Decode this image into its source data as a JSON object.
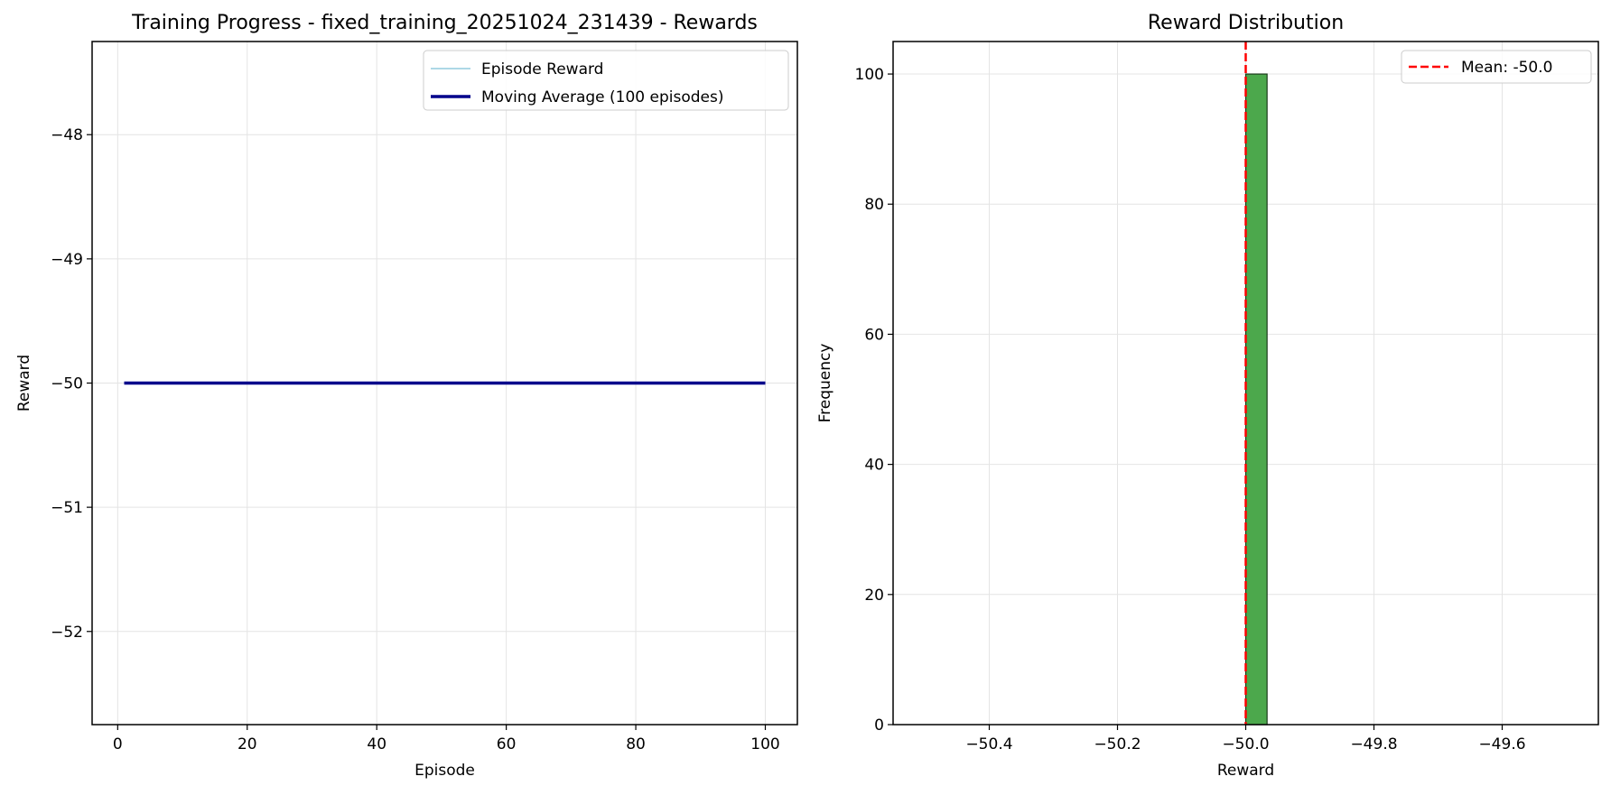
{
  "chart_data": [
    {
      "type": "line",
      "title": "Training Progress - fixed_training_20251024_231439 - Rewards",
      "xlabel": "Episode",
      "ylabel": "Reward",
      "xlim": [
        -3.95,
        104.95
      ],
      "ylim": [
        -52.75,
        -47.25
      ],
      "xticks": [
        0,
        20,
        40,
        60,
        80,
        100
      ],
      "xtick_labels": [
        "0",
        "20",
        "40",
        "60",
        "80",
        "100"
      ],
      "yticks": [
        -52,
        -51,
        -50,
        -49,
        -48
      ],
      "ytick_labels": [
        "−52",
        "−51",
        "−50",
        "−49",
        "−48"
      ],
      "grid": true,
      "legend_position": "upper right",
      "series": [
        {
          "name": "Episode Reward",
          "color": "#add8e6",
          "x": [
            1,
            100
          ],
          "y": [
            -50,
            -50
          ]
        },
        {
          "name": "Moving Average (100 episodes)",
          "color": "#00008b",
          "x": [
            1,
            100
          ],
          "y": [
            -50,
            -50
          ]
        }
      ]
    },
    {
      "type": "bar",
      "title": "Reward Distribution",
      "xlabel": "Reward",
      "ylabel": "Frequency",
      "xlim": [
        -50.55,
        -49.45
      ],
      "ylim": [
        0,
        105
      ],
      "xticks": [
        -50.4,
        -50.2,
        -50.0,
        -49.8,
        -49.6
      ],
      "xtick_labels": [
        "−50.4",
        "−50.2",
        "−50.0",
        "−49.8",
        "−49.6"
      ],
      "yticks": [
        0,
        20,
        40,
        60,
        80,
        100
      ],
      "ytick_labels": [
        "0",
        "20",
        "40",
        "60",
        "80",
        "100"
      ],
      "grid": true,
      "legend_position": "upper right",
      "bars": [
        {
          "x_start": -50.0,
          "x_end": -49.9667,
          "value": 100
        }
      ],
      "bar_color": "#4ca84c",
      "bar_edge_color": "#1a3a1a",
      "mean_line": {
        "value": -50.0,
        "label": "Mean: -50.0",
        "color": "#ff0000"
      }
    }
  ]
}
